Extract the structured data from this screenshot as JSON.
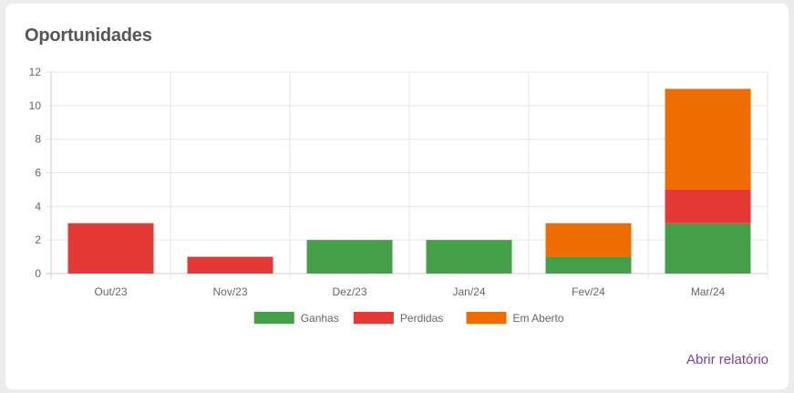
{
  "card": {
    "title": "Oportunidades",
    "report_link": "Abrir relatório"
  },
  "colors": {
    "ganhas": "#43a047",
    "perdidas": "#e53935",
    "em_aberto": "#ef6c00",
    "link": "#7b3fa3"
  },
  "chart_data": {
    "type": "bar",
    "stacked": true,
    "categories": [
      "Out/23",
      "Nov/23",
      "Dez/23",
      "Jan/24",
      "Fev/24",
      "Mar/24"
    ],
    "series": [
      {
        "name": "Ganhas",
        "color": "#43a047",
        "values": [
          0,
          0,
          2,
          2,
          1,
          3
        ]
      },
      {
        "name": "Perdidas",
        "color": "#e53935",
        "values": [
          3,
          1,
          0,
          0,
          0,
          2
        ]
      },
      {
        "name": "Em Aberto",
        "color": "#ef6c00",
        "values": [
          0,
          0,
          0,
          0,
          2,
          6
        ]
      }
    ],
    "yticks": [
      0,
      2,
      4,
      6,
      8,
      10,
      12
    ],
    "ylim": [
      0,
      12
    ],
    "grid": true,
    "legend_position": "bottom"
  }
}
